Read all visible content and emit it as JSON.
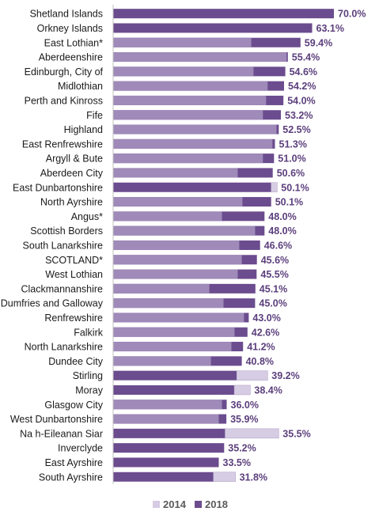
{
  "chart_data": {
    "type": "bar",
    "orientation": "horizontal",
    "title": "",
    "xlabel": "",
    "ylabel": "",
    "xlim": [
      0,
      70
    ],
    "grid": false,
    "legend_position": "bottom",
    "value_format_suffix": "%",
    "value_label_series": "2018",
    "categories": [
      "Shetland Islands",
      "Orkney Islands",
      "East Lothian*",
      "Aberdeenshire",
      "Edinburgh, City of",
      "Midlothian",
      "Perth and Kinross",
      "Fife",
      "Highland",
      "East Renfrewshire",
      "Argyll & Bute",
      "Aberdeen City",
      "East Dunbartonshire",
      "North Ayrshire",
      "Angus*",
      "Scottish Borders",
      "South Lanarkshire",
      "SCOTLAND*",
      "West Lothian",
      "Clackmannanshire",
      "Dumfries and Galloway",
      "Renfrewshire",
      "Falkirk",
      "North Lanarkshire",
      "Dundee City",
      "Stirling",
      "Moray",
      "Glasgow City",
      "West Dunbartonshire",
      "Na h-Eileanan Siar",
      "Inverclyde",
      "East Ayrshire",
      "South Ayrshire"
    ],
    "value_labels": [
      "70.0%",
      "63.1%",
      "59.4%",
      "55.4%",
      "54.6%",
      "54.2%",
      "54.0%",
      "53.2%",
      "52.5%",
      "51.3%",
      "51.0%",
      "50.6%",
      "50.1%",
      "50.1%",
      "48.0%",
      "48.0%",
      "46.6%",
      "45.6%",
      "45.5%",
      "45.1%",
      "45.0%",
      "43.0%",
      "42.6%",
      "41.2%",
      "40.8%",
      "39.2%",
      "38.4%",
      "36.0%",
      "35.9%",
      "35.5%",
      "35.2%",
      "33.5%",
      "31.8%"
    ],
    "series": [
      {
        "name": "2014",
        "color": "#d6cce3",
        "values": [
          0,
          0,
          43.8,
          55.0,
          44.5,
          49.0,
          48.5,
          47.5,
          51.8,
          50.5,
          47.5,
          39.5,
          52.0,
          41.0,
          34.5,
          45.0,
          40.0,
          40.8,
          39.5,
          30.5,
          35.0,
          41.5,
          38.5,
          37.5,
          31.0,
          49.0,
          43.5,
          34.5,
          33.5,
          52.5,
          0,
          0,
          38.8
        ]
      },
      {
        "name": "2018",
        "color": "#6b4c8e",
        "values": [
          70.0,
          63.1,
          59.4,
          55.4,
          54.6,
          54.2,
          54.0,
          53.2,
          52.5,
          51.3,
          51.0,
          50.6,
          50.1,
          50.1,
          48.0,
          48.0,
          46.6,
          45.6,
          45.5,
          45.1,
          45.0,
          43.0,
          42.6,
          41.2,
          40.8,
          39.2,
          38.4,
          36.0,
          35.9,
          35.5,
          35.2,
          33.5,
          31.8
        ]
      }
    ]
  },
  "colors": {
    "earlier_fill": "#9f8ab9",
    "later_fill": "#6b4c8e",
    "value_text": "#5b3f7c",
    "axis": "#bfbfbf"
  }
}
